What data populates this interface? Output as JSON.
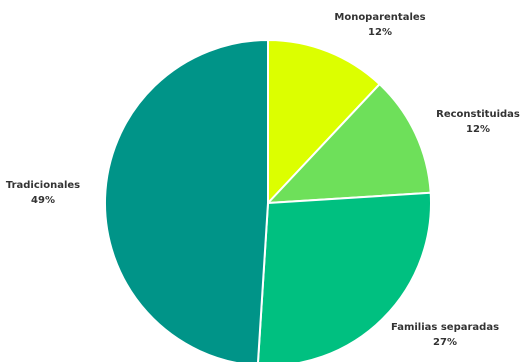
{
  "chart_data": {
    "type": "pie",
    "title": "",
    "start_angle_deg": 0,
    "direction": "clockwise",
    "slices": [
      {
        "label": "Monoparentales",
        "value": 12,
        "display": "12%",
        "color": "#dcff00"
      },
      {
        "label": "Reconstituidas",
        "value": 12,
        "display": "12%",
        "color": "#6ee05a"
      },
      {
        "label": "Familias separadas",
        "value": 27,
        "display": "27%",
        "color": "#00c080"
      },
      {
        "label": "Tradicionales",
        "value": 49,
        "display": "49%",
        "color": "#009488"
      }
    ]
  }
}
